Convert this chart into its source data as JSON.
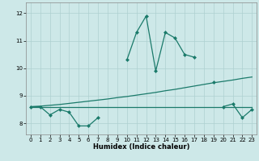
{
  "xlabel": "Humidex (Indice chaleur)",
  "x_values": [
    0,
    1,
    2,
    3,
    4,
    5,
    6,
    7,
    8,
    9,
    10,
    11,
    12,
    13,
    14,
    15,
    16,
    17,
    18,
    19,
    20,
    21,
    22,
    23
  ],
  "main_curve": [
    8.6,
    8.6,
    8.3,
    8.5,
    8.4,
    7.9,
    7.9,
    8.2,
    null,
    null,
    10.3,
    11.3,
    11.9,
    9.9,
    11.3,
    11.1,
    10.5,
    10.4,
    null,
    9.5,
    null,
    null,
    null,
    null
  ],
  "end_curve": [
    null,
    null,
    null,
    null,
    null,
    null,
    null,
    null,
    null,
    null,
    null,
    null,
    null,
    null,
    null,
    null,
    null,
    null,
    null,
    null,
    8.6,
    8.7,
    8.2,
    8.5
  ],
  "flat_line": [
    8.6,
    8.6,
    8.6,
    8.6,
    8.6,
    8.6,
    8.6,
    8.6,
    8.6,
    8.6,
    8.6,
    8.6,
    8.6,
    8.6,
    8.6,
    8.6,
    8.6,
    8.6,
    8.6,
    8.6,
    8.6,
    8.6,
    8.6,
    8.6
  ],
  "rising_line": [
    8.6,
    8.62,
    8.65,
    8.68,
    8.72,
    8.76,
    8.8,
    8.84,
    8.88,
    8.93,
    8.97,
    9.02,
    9.07,
    9.12,
    9.18,
    9.23,
    9.29,
    9.35,
    9.41,
    9.47,
    9.52,
    9.57,
    9.63,
    9.68
  ],
  "ylim": [
    7.6,
    12.4
  ],
  "yticks": [
    8,
    9,
    10,
    11,
    12
  ],
  "xticks": [
    0,
    1,
    2,
    3,
    4,
    5,
    6,
    7,
    8,
    9,
    10,
    11,
    12,
    13,
    14,
    15,
    16,
    17,
    18,
    19,
    20,
    21,
    22,
    23
  ],
  "line_color": "#1a7a6a",
  "bg_color": "#cde8e8",
  "grid_color": "#aed0d0"
}
